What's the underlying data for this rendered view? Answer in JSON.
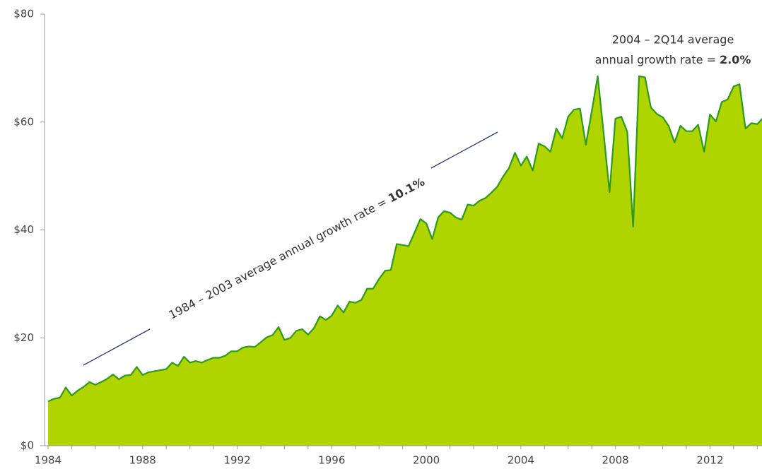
{
  "chart_data": {
    "type": "area",
    "x": [
      1984,
      1984.25,
      1984.5,
      1984.75,
      1985,
      1985.25,
      1985.5,
      1985.75,
      1986,
      1986.25,
      1986.5,
      1986.75,
      1987,
      1987.25,
      1987.5,
      1987.75,
      1988,
      1988.25,
      1988.5,
      1988.75,
      1989,
      1989.25,
      1989.5,
      1989.75,
      1990,
      1990.25,
      1990.5,
      1990.75,
      1991,
      1991.25,
      1991.5,
      1991.75,
      1992,
      1992.25,
      1992.5,
      1992.75,
      1993,
      1993.25,
      1993.5,
      1993.75,
      1994,
      1994.25,
      1994.5,
      1994.75,
      1995,
      1995.25,
      1995.5,
      1995.75,
      1996,
      1996.25,
      1996.5,
      1996.75,
      1997,
      1997.25,
      1997.5,
      1997.75,
      1998,
      1998.25,
      1998.5,
      1998.75,
      1999,
      1999.25,
      1999.5,
      1999.75,
      2000,
      2000.25,
      2000.5,
      2000.75,
      2001,
      2001.25,
      2001.5,
      2001.75,
      2002,
      2002.25,
      2002.5,
      2002.75,
      2003,
      2003.25,
      2003.5,
      2003.75,
      2004,
      2004.25,
      2004.5,
      2004.75,
      2005,
      2005.25,
      2005.5,
      2005.75,
      2006,
      2006.25,
      2006.5,
      2006.75,
      2007,
      2007.25,
      2007.5,
      2007.75,
      2008,
      2008.25,
      2008.5,
      2008.75,
      2009,
      2009.25,
      2009.5,
      2009.75,
      2010,
      2010.25,
      2010.5,
      2010.75,
      2011,
      2011.25,
      2011.5,
      2011.75,
      2012,
      2012.25,
      2012.5,
      2012.75,
      2013,
      2013.25,
      2013.5,
      2013.75,
      2014,
      2014.25
    ],
    "values": [
      8.2,
      8.7,
      8.9,
      10.8,
      9.3,
      10.2,
      10.9,
      11.8,
      11.3,
      11.8,
      12.4,
      13.2,
      12.3,
      13.0,
      13.1,
      14.6,
      13.1,
      13.6,
      13.8,
      14.0,
      14.2,
      15.4,
      14.8,
      16.5,
      15.4,
      15.7,
      15.4,
      15.9,
      16.3,
      16.3,
      16.7,
      17.5,
      17.5,
      18.2,
      18.4,
      18.3,
      19.2,
      20.1,
      20.5,
      22.0,
      19.6,
      20.0,
      21.3,
      21.6,
      20.6,
      21.8,
      24.0,
      23.3,
      24.1,
      26.0,
      24.7,
      26.7,
      26.5,
      27.0,
      29.1,
      29.1,
      30.9,
      32.4,
      32.6,
      37.4,
      37.2,
      37.0,
      39.5,
      42.0,
      41.2,
      38.3,
      42.3,
      43.5,
      43.2,
      42.3,
      41.9,
      44.7,
      44.5,
      45.4,
      45.9,
      46.9,
      48.0,
      49.9,
      51.5,
      54.3,
      51.9,
      53.6,
      51.0,
      56.0,
      55.5,
      54.5,
      58.8,
      57.0,
      61.0,
      62.3,
      62.5,
      55.8,
      62.0,
      68.5,
      58.0,
      47.0,
      60.6,
      61.0,
      58.2,
      40.6,
      68.5,
      68.3,
      62.7,
      61.5,
      60.9,
      59.3,
      56.2,
      59.3,
      58.3,
      58.3,
      59.5,
      54.5,
      61.4,
      60.1,
      63.7,
      64.2,
      66.6,
      67.0,
      58.8,
      59.8,
      59.6,
      60.8
    ],
    "color": "#b0d400",
    "line_color": "#2b9a1e",
    "xlim": [
      1984,
      2014.2
    ],
    "xticks": [
      1984,
      1988,
      1992,
      1996,
      2000,
      2004,
      2008,
      2012
    ],
    "xticks_minor": [
      1984,
      1985,
      1986,
      1987,
      1988,
      1989,
      1990,
      1991,
      1992,
      1993,
      1994,
      1995,
      1996,
      1997,
      1998,
      1999,
      2000,
      2001,
      2002,
      2003,
      2004,
      2005,
      2006,
      2007,
      2008,
      2009,
      2010,
      2011,
      2012,
      2013,
      2014
    ],
    "ylim": [
      0,
      80
    ],
    "yticks": [
      {
        "value": 0,
        "label": "$0"
      },
      {
        "value": 20,
        "label": "$20"
      },
      {
        "value": 40,
        "label": "$40"
      },
      {
        "value": 60,
        "label": "$60"
      },
      {
        "value": 80,
        "label": "$80"
      }
    ],
    "grid": false,
    "annotations": [
      {
        "text": "1984 – 2003 average annual growth rate =",
        "emphasis": "10.1%"
      },
      {
        "line1": "2004 – 2Q14 average",
        "text": "annual growth rate =",
        "emphasis": "2.0%"
      }
    ]
  }
}
